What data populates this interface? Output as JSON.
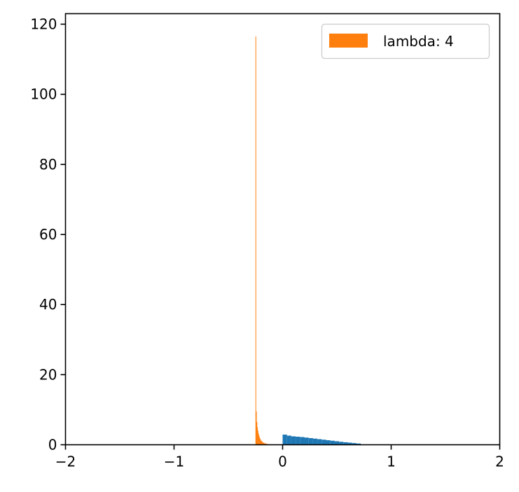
{
  "chart_data": {
    "type": "bar",
    "title": "",
    "xlabel": "",
    "ylabel": "",
    "xlim": [
      -2,
      2
    ],
    "ylim": [
      0,
      123
    ],
    "xticks": [
      -2,
      -1,
      0,
      1,
      2
    ],
    "xtick_labels": [
      "−2",
      "−1",
      "0",
      "1",
      "2"
    ],
    "yticks": [
      0,
      20,
      40,
      60,
      80,
      100,
      120
    ],
    "ytick_labels": [
      "0",
      "20",
      "40",
      "60",
      "80",
      "100",
      "120"
    ],
    "grid": false,
    "legend_position": "top-right",
    "legend": [
      "lambda: 4"
    ],
    "series": [
      {
        "color": "#1f77b4",
        "bins": [
          [
            0.0,
            0.04,
            2.9
          ],
          [
            0.04,
            0.08,
            2.6
          ],
          [
            0.08,
            0.12,
            2.4
          ],
          [
            0.12,
            0.16,
            2.3
          ],
          [
            0.16,
            0.2,
            2.2
          ],
          [
            0.2,
            0.24,
            2.05
          ],
          [
            0.24,
            0.28,
            1.9
          ],
          [
            0.28,
            0.32,
            1.75
          ],
          [
            0.32,
            0.36,
            1.6
          ],
          [
            0.36,
            0.4,
            1.45
          ],
          [
            0.4,
            0.44,
            1.3
          ],
          [
            0.44,
            0.48,
            1.15
          ],
          [
            0.48,
            0.52,
            1.0
          ],
          [
            0.52,
            0.56,
            0.85
          ],
          [
            0.56,
            0.6,
            0.72
          ],
          [
            0.6,
            0.64,
            0.6
          ],
          [
            0.64,
            0.68,
            0.48
          ],
          [
            0.68,
            0.72,
            0.35
          ],
          [
            0.72,
            0.76,
            0.1
          ],
          [
            0.76,
            0.8,
            0.05
          ]
        ]
      },
      {
        "name": "lambda: 4",
        "color": "#ff7f0e",
        "bins": [
          [
            -0.25,
            -0.245,
            116.5
          ],
          [
            -0.245,
            -0.24,
            9.5
          ],
          [
            -0.24,
            -0.235,
            6.5
          ],
          [
            -0.235,
            -0.23,
            5.0
          ],
          [
            -0.23,
            -0.225,
            4.0
          ],
          [
            -0.225,
            -0.22,
            3.2
          ],
          [
            -0.22,
            -0.215,
            2.6
          ],
          [
            -0.215,
            -0.21,
            2.1
          ],
          [
            -0.21,
            -0.205,
            1.7
          ],
          [
            -0.205,
            -0.2,
            1.4
          ],
          [
            -0.2,
            -0.19,
            1.1
          ],
          [
            -0.19,
            -0.18,
            0.8
          ],
          [
            -0.18,
            -0.17,
            0.6
          ],
          [
            -0.17,
            -0.16,
            0.45
          ],
          [
            -0.16,
            -0.15,
            0.35
          ],
          [
            -0.15,
            -0.14,
            0.25
          ],
          [
            -0.14,
            -0.12,
            0.15
          ],
          [
            -0.12,
            -0.1,
            0.08
          ]
        ]
      }
    ]
  }
}
